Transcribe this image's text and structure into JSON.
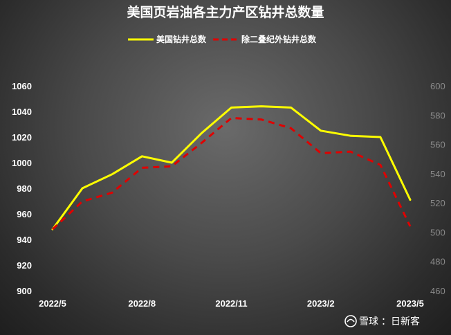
{
  "chart_data": {
    "type": "line",
    "title": "美国页岩油各主力产区钻井总数量",
    "x": [
      "2022/5",
      "2022/6",
      "2022/7",
      "2022/8",
      "2022/9",
      "2022/10",
      "2022/11",
      "2022/12",
      "2023/1",
      "2023/2",
      "2023/3",
      "2023/4",
      "2023/5"
    ],
    "xtick_labels": [
      "2022/5",
      "2022/8",
      "2022/11",
      "2023/2",
      "2023/5"
    ],
    "series": [
      {
        "name": "美国钻井总数",
        "axis": "left",
        "color": "#ffff00",
        "style": "solid",
        "values": [
          948,
          980,
          991,
          1005,
          1000,
          1023,
          1043,
          1044,
          1043,
          1025,
          1021,
          1020,
          971
        ]
      },
      {
        "name": "除二叠纪外钻井总数",
        "axis": "right",
        "color": "#e00000",
        "style": "dashed",
        "values": [
          502,
          521,
          527,
          544,
          545,
          561,
          578,
          577,
          571,
          554,
          555,
          546,
          504
        ]
      }
    ],
    "y_left": {
      "min": 900,
      "max": 1060,
      "ticks": [
        900,
        920,
        940,
        960,
        980,
        1000,
        1020,
        1040,
        1060
      ]
    },
    "y_right": {
      "min": 460,
      "max": 600,
      "ticks": [
        460,
        480,
        500,
        520,
        540,
        560,
        580,
        600
      ]
    },
    "legend_position": "top-center",
    "grid": false
  },
  "watermark": {
    "brand": "雪球",
    "separator": "：",
    "author": "日新客"
  }
}
